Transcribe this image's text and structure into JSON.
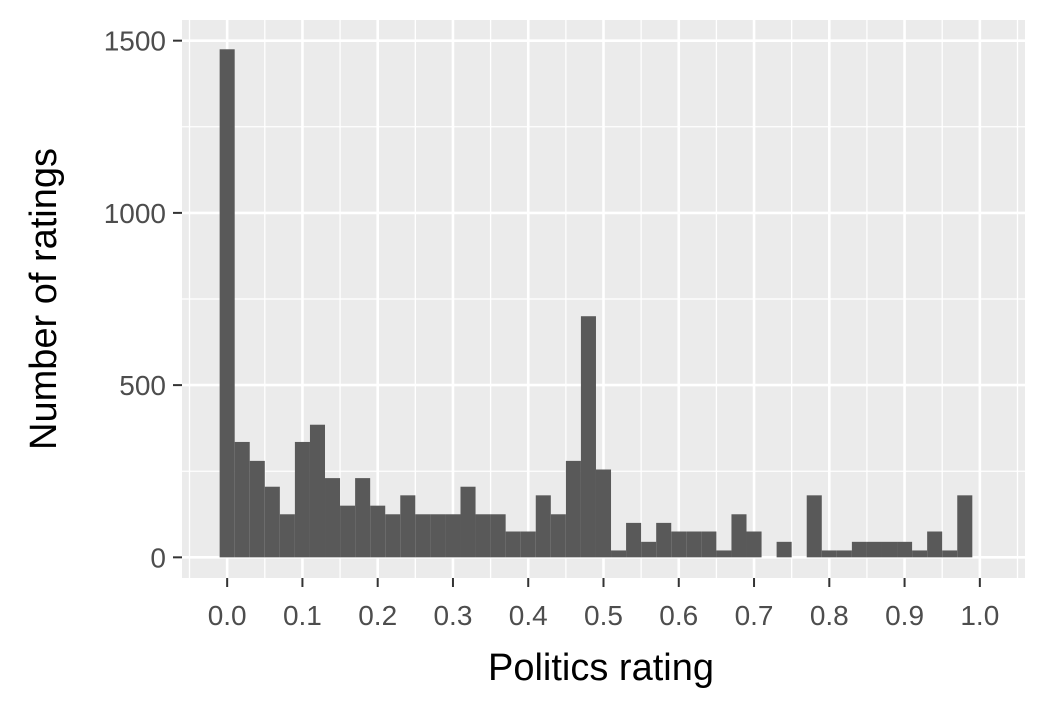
{
  "chart_data": {
    "type": "bar",
    "subtype": "histogram",
    "title": "",
    "xlabel": "Politics rating",
    "ylabel": "Number of ratings",
    "xlim": [
      -0.06,
      1.06
    ],
    "ylim": [
      -60,
      1560
    ],
    "bin_width": 0.02,
    "x_ticks": [
      0.0,
      0.1,
      0.2,
      0.3,
      0.4,
      0.5,
      0.6,
      0.7,
      0.8,
      0.9,
      1.0
    ],
    "x_tick_labels": [
      "0.0",
      "0.1",
      "0.2",
      "0.3",
      "0.4",
      "0.5",
      "0.6",
      "0.7",
      "0.8",
      "0.9",
      "1.0"
    ],
    "y_ticks": [
      0,
      500,
      1000,
      1500
    ],
    "y_tick_labels": [
      "0",
      "500",
      "1000",
      "1500"
    ],
    "grid": true,
    "bar_color": "#595959",
    "panel_color": "#ebebeb",
    "grid_color": "#ffffff",
    "x": [
      0.0,
      0.02,
      0.04,
      0.06,
      0.08,
      0.1,
      0.12,
      0.14,
      0.16,
      0.18,
      0.2,
      0.22,
      0.24,
      0.26,
      0.28,
      0.3,
      0.32,
      0.34,
      0.36,
      0.38,
      0.4,
      0.42,
      0.44,
      0.46,
      0.48,
      0.5,
      0.52,
      0.54,
      0.56,
      0.58,
      0.6,
      0.62,
      0.64,
      0.66,
      0.68,
      0.7,
      0.72,
      0.74,
      0.76,
      0.78,
      0.8,
      0.82,
      0.84,
      0.86,
      0.88,
      0.9,
      0.92,
      0.94,
      0.96,
      0.98,
      1.0
    ],
    "values": [
      1475,
      335,
      280,
      205,
      125,
      335,
      385,
      230,
      150,
      230,
      150,
      125,
      180,
      125,
      125,
      125,
      205,
      125,
      125,
      75,
      75,
      180,
      125,
      280,
      700,
      255,
      20,
      100,
      45,
      100,
      75,
      75,
      75,
      20,
      125,
      75,
      0,
      45,
      0,
      180,
      20,
      20,
      45,
      45,
      45,
      45,
      20,
      75,
      20,
      180,
      0
    ]
  }
}
